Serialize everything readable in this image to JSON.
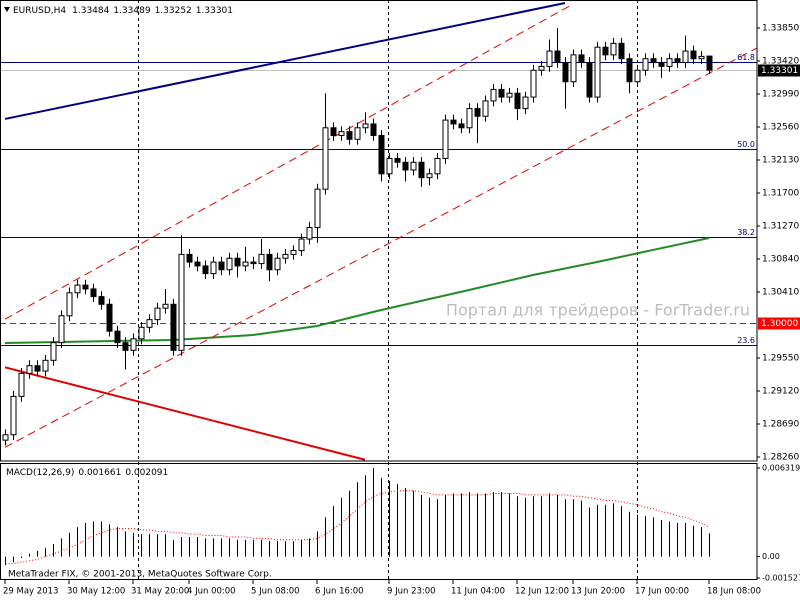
{
  "chart_data": {
    "type": "candlestick",
    "title": "EURUSD,H4",
    "categories": [
      "29 May 2013",
      null,
      null,
      null,
      null,
      null,
      null,
      null,
      "30 May 12:00",
      null,
      null,
      null,
      null,
      null,
      null,
      null,
      "31 May 20:00",
      null,
      null,
      null,
      null,
      null,
      null,
      "4 Jun 00:00",
      null,
      null,
      null,
      null,
      null,
      null,
      null,
      "5 Jun 08:00",
      null,
      null,
      null,
      null,
      null,
      null,
      null,
      "6 Jun 16:00",
      null,
      null,
      null,
      null,
      null,
      null,
      null,
      null,
      "9 Jun 23:00",
      null,
      null,
      null,
      null,
      null,
      null,
      null,
      "11 Jun 04:00",
      null,
      null,
      null,
      null,
      null,
      null,
      null,
      "12 Jun 12:00",
      null,
      null,
      null,
      null,
      null,
      null,
      "13 Jun 20:00",
      null,
      null,
      null,
      null,
      null,
      null,
      null,
      "17 Jun 00:00",
      null,
      null,
      null,
      null,
      null,
      null,
      null,
      null,
      "18 Jun 08:00"
    ],
    "open": [
      1.2848,
      1.2855,
      1.2905,
      1.2935,
      1.2945,
      1.2938,
      1.2952,
      1.2975,
      1.301,
      1.304,
      1.305,
      1.3045,
      1.3035,
      1.3025,
      1.299,
      1.2975,
      1.2965,
      1.298,
      1.2995,
      1.3005,
      1.302,
      1.3025,
      1.2965,
      1.309,
      1.308,
      1.3075,
      1.3065,
      1.308,
      1.307,
      1.3085,
      1.3075,
      1.308,
      1.3078,
      1.309,
      1.307,
      1.3085,
      1.309,
      1.3095,
      1.311,
      1.3125,
      1.3175,
      1.3255,
      1.3245,
      1.325,
      1.324,
      1.3255,
      1.326,
      1.3245,
      1.3195,
      1.3215,
      1.321,
      1.32,
      1.321,
      1.319,
      1.3195,
      1.3215,
      1.3265,
      1.326,
      1.3255,
      1.328,
      1.327,
      1.329,
      1.3305,
      1.3295,
      1.33,
      1.328,
      1.3295,
      1.333,
      1.3335,
      1.3355,
      1.334,
      1.3315,
      1.335,
      1.334,
      1.3295,
      1.336,
      1.335,
      1.3365,
      1.3345,
      1.3315,
      1.333,
      1.3345,
      1.334,
      1.3335,
      1.3345,
      1.334,
      1.3355,
      1.3345,
      1.33484
    ],
    "high": [
      1.2862,
      1.2912,
      1.2942,
      1.2952,
      1.2952,
      1.2959,
      1.2982,
      1.3017,
      1.3047,
      1.3057,
      1.3057,
      1.3052,
      1.3042,
      1.3032,
      1.2997,
      1.2982,
      1.2987,
      1.3002,
      1.3012,
      1.3027,
      1.3045,
      1.3032,
      1.3115,
      1.3097,
      1.3087,
      1.3082,
      1.3087,
      1.3087,
      1.3092,
      1.3092,
      1.31,
      1.3087,
      1.311,
      1.3097,
      1.3092,
      1.3097,
      1.3102,
      1.3117,
      1.3132,
      1.3182,
      1.33,
      1.3262,
      1.3257,
      1.3257,
      1.3262,
      1.3275,
      1.3267,
      1.3252,
      1.3222,
      1.3222,
      1.3217,
      1.3217,
      1.3217,
      1.3202,
      1.3222,
      1.3272,
      1.3272,
      1.3267,
      1.3287,
      1.3287,
      1.3297,
      1.3312,
      1.3312,
      1.3307,
      1.3307,
      1.3302,
      1.3337,
      1.3342,
      1.337,
      1.3385,
      1.3347,
      1.3357,
      1.3357,
      1.3347,
      1.3367,
      1.3367,
      1.3372,
      1.3372,
      1.3352,
      1.3337,
      1.3352,
      1.3352,
      1.3347,
      1.3352,
      1.3352,
      1.3375,
      1.3362,
      1.3355,
      1.33489
    ],
    "low": [
      1.2841,
      1.2848,
      1.2898,
      1.2928,
      1.2931,
      1.2931,
      1.2945,
      1.2968,
      1.3003,
      1.3033,
      1.3038,
      1.3028,
      1.3018,
      1.2983,
      1.2968,
      1.294,
      1.2958,
      1.2973,
      1.2988,
      1.2998,
      1.3013,
      1.2958,
      1.2958,
      1.3073,
      1.3068,
      1.3058,
      1.3058,
      1.3063,
      1.3063,
      1.306,
      1.3068,
      1.3071,
      1.3071,
      1.3055,
      1.3063,
      1.3078,
      1.3083,
      1.3088,
      1.3103,
      1.3105,
      1.3168,
      1.3238,
      1.3238,
      1.3233,
      1.3233,
      1.3248,
      1.3238,
      1.3185,
      1.3188,
      1.3203,
      1.3185,
      1.3193,
      1.3178,
      1.318,
      1.3188,
      1.3208,
      1.3253,
      1.3248,
      1.3248,
      1.3235,
      1.3263,
      1.3283,
      1.3288,
      1.3288,
      1.3265,
      1.3273,
      1.3288,
      1.3323,
      1.3328,
      1.3333,
      1.328,
      1.3308,
      1.3333,
      1.3288,
      1.3288,
      1.3343,
      1.3343,
      1.3338,
      1.33,
      1.3308,
      1.3323,
      1.3333,
      1.332,
      1.3328,
      1.3333,
      1.3333,
      1.3338,
      1.3338,
      1.33252
    ],
    "close": [
      1.2855,
      1.2905,
      1.2935,
      1.2945,
      1.2938,
      1.2952,
      1.2975,
      1.301,
      1.304,
      1.305,
      1.3045,
      1.3035,
      1.3025,
      1.299,
      1.2975,
      1.2965,
      1.298,
      1.2995,
      1.3005,
      1.302,
      1.3025,
      1.2965,
      1.309,
      1.308,
      1.3075,
      1.3065,
      1.308,
      1.307,
      1.3085,
      1.3075,
      1.308,
      1.3078,
      1.309,
      1.307,
      1.3085,
      1.309,
      1.3095,
      1.311,
      1.3125,
      1.3175,
      1.3255,
      1.3245,
      1.325,
      1.324,
      1.3255,
      1.326,
      1.3245,
      1.3195,
      1.3215,
      1.321,
      1.32,
      1.321,
      1.319,
      1.3195,
      1.3215,
      1.3265,
      1.326,
      1.3255,
      1.328,
      1.327,
      1.329,
      1.3305,
      1.3295,
      1.33,
      1.328,
      1.3295,
      1.333,
      1.3335,
      1.3355,
      1.334,
      1.3315,
      1.335,
      1.334,
      1.3295,
      1.336,
      1.335,
      1.3365,
      1.3345,
      1.3315,
      1.333,
      1.3345,
      1.334,
      1.3335,
      1.3345,
      1.334,
      1.3355,
      1.3345,
      1.3348,
      1.33301
    ],
    "up_color": "#ffffff",
    "down_color": "#000000",
    "ylim": [
      1.28208,
      1.34215
    ],
    "yticks": [
      {
        "value": 1.2826,
        "label": "1.28260"
      },
      {
        "value": 1.2869,
        "label": "1.28690"
      },
      {
        "value": 1.2912,
        "label": "1.29120"
      },
      {
        "value": 1.2955,
        "label": "1.29550"
      },
      {
        "value": 1.3041,
        "label": "1.30410"
      },
      {
        "value": 1.3084,
        "label": "1.30840"
      },
      {
        "value": 1.3127,
        "label": "1.31270"
      },
      {
        "value": 1.317,
        "label": "1.31700"
      },
      {
        "value": 1.3213,
        "label": "1.32130"
      },
      {
        "value": 1.3256,
        "label": "1.32560"
      },
      {
        "value": 1.3299,
        "label": "1.32990"
      },
      {
        "value": 1.3342,
        "label": "1.33420"
      },
      {
        "value": 1.3385,
        "label": "1.33850"
      }
    ],
    "last_price_color": "#c0c0c0",
    "price_lines": [
      {
        "value": 1.3,
        "label": "1.30000",
        "color": "#ff0000"
      }
    ],
    "fibo": {
      "color": "#000080",
      "levels": [
        {
          "label": "61.8",
          "value": 1.33407
        },
        {
          "label": "50.0",
          "value": 1.32274
        },
        {
          "label": "38.2",
          "value": 1.31127
        },
        {
          "label": "23.6",
          "value": 1.2972
        }
      ]
    },
    "moving_average": {
      "color": "#228b22",
      "x": [
        0,
        21,
        31,
        39,
        47,
        58,
        66,
        74,
        81,
        88
      ],
      "values": [
        1.29746,
        1.29785,
        1.2985,
        1.29967,
        1.30176,
        1.30436,
        1.30632,
        1.30801,
        1.30958,
        1.31114
      ]
    },
    "trend_lines": [
      {
        "color": "#000080",
        "dashed": false,
        "x": [
          0,
          70
        ],
        "values": [
          1.32665,
          1.34176
        ]
      },
      {
        "color": "#e00000",
        "dashed": false,
        "x": [
          0,
          45
        ],
        "values": [
          1.29429,
          1.28224
        ]
      },
      {
        "color": "#e00000",
        "dashed": true,
        "x": [
          0,
          71
        ],
        "values": [
          1.30056,
          1.34162
        ]
      },
      {
        "color": "#e00000",
        "dashed": true,
        "x": [
          0,
          94
        ],
        "values": [
          1.28387,
          1.3359
        ]
      }
    ],
    "watermark": "Портал для трейдеров - ForTrader.ru",
    "copyright": "MetaTrader FIX, © 2001-2013, MetaQuotes Software Corp.",
    "macd": {
      "type": "macd",
      "name": "MACD(12,26,9)",
      "color": "#000000",
      "signal_color": "#ff0000",
      "ylim": [
        -0.001527,
        0.006319
      ],
      "yticks": [
        -0.001527,
        {
          "value": 0,
          "label": "0.00"
        },
        0.006319
      ],
      "histogram": [
        -0.0006,
        -0.0004,
        -0.0001,
        0.0002,
        0.0004,
        0.0006,
        0.0009,
        0.0013,
        0.0017,
        0.0021,
        0.0024,
        0.0025,
        0.0025,
        0.0023,
        0.0021,
        0.0018,
        0.0017,
        0.0016,
        0.0016,
        0.0016,
        0.0016,
        0.0012,
        0.0014,
        0.0014,
        0.0014,
        0.0013,
        0.0013,
        0.0013,
        0.0013,
        0.0012,
        0.0012,
        0.0012,
        0.0012,
        0.0011,
        0.0011,
        0.0011,
        0.0011,
        0.0012,
        0.0013,
        0.0018,
        0.0028,
        0.0036,
        0.0042,
        0.0047,
        0.0053,
        0.0058,
        0.006319,
        0.0056,
        0.0054,
        0.0052,
        0.0049,
        0.0047,
        0.0044,
        0.0042,
        0.0041,
        0.0044,
        0.0045,
        0.0045,
        0.0046,
        0.0045,
        0.0045,
        0.0046,
        0.0046,
        0.0045,
        0.0043,
        0.0042,
        0.0043,
        0.0043,
        0.0045,
        0.0044,
        0.0041,
        0.0041,
        0.004,
        0.0035,
        0.0037,
        0.0037,
        0.0038,
        0.0036,
        0.0032,
        0.003,
        0.0029,
        0.0028,
        0.0026,
        0.0025,
        0.0024,
        0.0024,
        0.0022,
        0.0021,
        0.001661
      ],
      "signal": [
        -0.0005,
        -0.0005,
        -0.0004,
        -0.0003,
        -0.0002,
        0.0,
        0.0002,
        0.0004,
        0.0006,
        0.0009,
        0.0012,
        0.0015,
        0.0017,
        0.0019,
        0.002,
        0.002,
        0.002,
        0.0019,
        0.0019,
        0.0018,
        0.0018,
        0.0017,
        0.0017,
        0.0016,
        0.0016,
        0.0015,
        0.0015,
        0.0015,
        0.0014,
        0.0014,
        0.0014,
        0.0013,
        0.0013,
        0.0013,
        0.0012,
        0.0012,
        0.0012,
        0.0012,
        0.0012,
        0.0013,
        0.0016,
        0.002,
        0.0024,
        0.0029,
        0.0034,
        0.0039,
        0.0043,
        0.0045,
        0.0046,
        0.0047,
        0.0047,
        0.0047,
        0.0046,
        0.0045,
        0.0044,
        0.0044,
        0.0044,
        0.0044,
        0.0044,
        0.0044,
        0.0044,
        0.0045,
        0.0045,
        0.0045,
        0.0045,
        0.0044,
        0.0044,
        0.0044,
        0.0044,
        0.0044,
        0.0044,
        0.0043,
        0.0043,
        0.0042,
        0.0041,
        0.004,
        0.004,
        0.0039,
        0.0038,
        0.0037,
        0.0035,
        0.0034,
        0.0032,
        0.0031,
        0.0029,
        0.0028,
        0.0026,
        0.0024,
        0.002091
      ]
    }
  }
}
